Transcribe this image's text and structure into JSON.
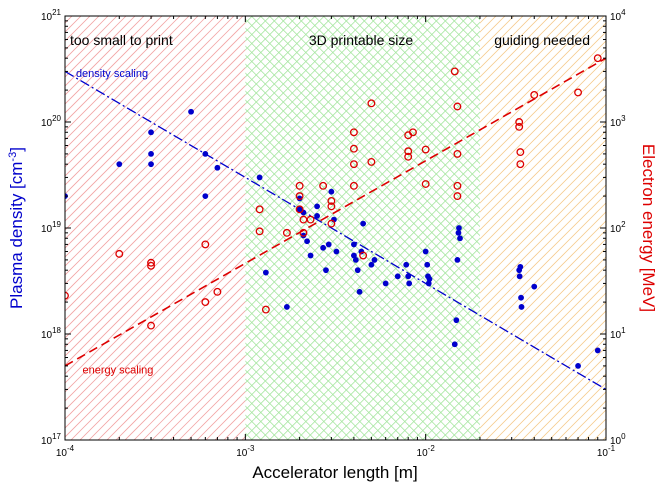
{
  "chart_data": {
    "type": "scatter",
    "xlabel": "Accelerator length [m]",
    "ylabel_left": "Plasma density [cm",
    "ylabel_left_sup": "-3",
    "ylabel_left_tail": "]",
    "ylabel_right": "Electron energy [MeV]",
    "x_scale": "log",
    "y_left_scale": "log",
    "y_right_scale": "log",
    "xlim": [
      0.0001,
      0.1
    ],
    "ylim_left": [
      1e+17,
      1e+21
    ],
    "ylim_right": [
      1,
      10000
    ],
    "x_ticks": [
      {
        "value": 0.0001,
        "base": "10",
        "exp": "-4"
      },
      {
        "value": 0.001,
        "base": "10",
        "exp": "-3"
      },
      {
        "value": 0.01,
        "base": "10",
        "exp": "-2"
      },
      {
        "value": 0.1,
        "base": "10",
        "exp": "-1"
      }
    ],
    "y_left_ticks": [
      {
        "value": 1e+17,
        "base": "10",
        "exp": "17"
      },
      {
        "value": 1e+18,
        "base": "10",
        "exp": "18"
      },
      {
        "value": 1e+19,
        "base": "10",
        "exp": "19"
      },
      {
        "value": 1e+20,
        "base": "10",
        "exp": "20"
      },
      {
        "value": 1e+21,
        "base": "10",
        "exp": "21"
      }
    ],
    "y_right_ticks": [
      {
        "value": 1,
        "base": "10",
        "exp": "0"
      },
      {
        "value": 10,
        "base": "10",
        "exp": "1"
      },
      {
        "value": 100,
        "base": "10",
        "exp": "2"
      },
      {
        "value": 1000,
        "base": "10",
        "exp": "3"
      },
      {
        "value": 10000,
        "base": "10",
        "exp": "4"
      }
    ],
    "regions": [
      {
        "label": "too small to print",
        "x_range": [
          0.0001,
          0.001
        ],
        "hatch_color": "#f2a3a3"
      },
      {
        "label": "3D printable size",
        "x_range": [
          0.001,
          0.02
        ],
        "hatch_color": "#a6e6a0"
      },
      {
        "label": "guiding needed",
        "x_range": [
          0.02,
          0.1
        ],
        "hatch_color": "#f5c98a"
      }
    ],
    "series": [
      {
        "name": "density scaling",
        "kind": "line",
        "axis": "left",
        "style": "dash-dot",
        "color": "#0000cc",
        "x": [
          0.0001,
          0.1
        ],
        "y": [
          3e+20,
          3e+17
        ]
      },
      {
        "name": "energy scaling",
        "kind": "line",
        "axis": "right",
        "style": "dashed",
        "color": "#dd0000",
        "x": [
          0.0001,
          0.1
        ],
        "y": [
          5,
          4000
        ]
      },
      {
        "kind": "scatter",
        "axis": "left",
        "marker": "filled-circle",
        "color": "#0000cc",
        "x": [
          0.0001,
          0.0002,
          0.0003,
          0.0003,
          0.0003,
          0.0005,
          0.0006,
          0.0006,
          0.0007,
          0.0012,
          0.0013,
          0.0017,
          0.002,
          0.002,
          0.0021,
          0.0021,
          0.0022,
          0.0023,
          0.0025,
          0.0025,
          0.0027,
          0.0028,
          0.0029,
          0.003,
          0.0031,
          0.0032,
          0.004,
          0.004,
          0.0041,
          0.0042,
          0.0043,
          0.0044,
          0.0045,
          0.005,
          0.0052,
          0.006,
          0.007,
          0.0078,
          0.008,
          0.0081,
          0.01,
          0.0102,
          0.0103,
          0.0104,
          0.0105,
          0.0145,
          0.0148,
          0.015,
          0.0152,
          0.0153,
          0.0155,
          0.033,
          0.0332,
          0.0335,
          0.0338,
          0.034,
          0.04,
          0.07,
          0.09
        ],
        "y": [
          2e+19,
          4e+19,
          4e+19,
          5e+19,
          8e+19,
          1.25e+20,
          5e+19,
          2e+19,
          3.7e+19,
          3e+19,
          3.8e+18,
          1.8e+18,
          1.9e+19,
          1.5e+19,
          1.4e+19,
          8.5e+18,
          7.5e+18,
          5.5e+18,
          1.6e+19,
          1.3e+19,
          6.5e+18,
          4e+18,
          7e+18,
          2.2e+19,
          1.2e+19,
          6e+18,
          7e+18,
          5.5e+18,
          5e+18,
          4e+18,
          2.5e+18,
          6e+18,
          1.1e+19,
          4.5e+18,
          5e+18,
          3e+18,
          3.5e+18,
          4.5e+18,
          3.5e+18,
          3e+18,
          6e+18,
          4.5e+18,
          3.5e+18,
          3e+18,
          3.3e+18,
          8e+17,
          1.35e+18,
          5e+18,
          9e+18,
          1e+19,
          8e+18,
          4e+18,
          3.5e+18,
          4.3e+18,
          2.2e+18,
          1.8e+18,
          2.8e+18,
          5e+17,
          7e+17
        ]
      },
      {
        "kind": "scatter",
        "axis": "right",
        "marker": "open-circle",
        "color": "#dd0000",
        "x": [
          0.0001,
          0.0002,
          0.0003,
          0.0003,
          0.0003,
          0.0006,
          0.0006,
          0.0007,
          0.0012,
          0.0012,
          0.0013,
          0.0017,
          0.002,
          0.002,
          0.002,
          0.0021,
          0.0021,
          0.0023,
          0.0027,
          0.003,
          0.003,
          0.003,
          0.004,
          0.004,
          0.004,
          0.004,
          0.0045,
          0.005,
          0.005,
          0.008,
          0.008,
          0.008,
          0.0085,
          0.01,
          0.01,
          0.0145,
          0.015,
          0.015,
          0.015,
          0.015,
          0.033,
          0.033,
          0.0335,
          0.0335,
          0.04,
          0.07,
          0.09
        ],
        "y": [
          23,
          57,
          47,
          44,
          12,
          20,
          70,
          25,
          150,
          93,
          17,
          90,
          250,
          200,
          150,
          120,
          90,
          120,
          250,
          180,
          160,
          110,
          800,
          560,
          400,
          250,
          55,
          1500,
          420,
          750,
          530,
          470,
          800,
          550,
          260,
          3000,
          1400,
          500,
          250,
          200,
          1000,
          900,
          520,
          400,
          1800,
          1900,
          4000
        ]
      }
    ],
    "annotations": [
      {
        "text": "density scaling",
        "color": "#0000cc",
        "x": 0.000115,
        "y_left": 2.85e+20
      },
      {
        "text": "energy scaling",
        "color": "#dd0000",
        "x": 0.000125,
        "y_left": 4.6e+17
      }
    ],
    "grid": false,
    "legend": "none"
  }
}
